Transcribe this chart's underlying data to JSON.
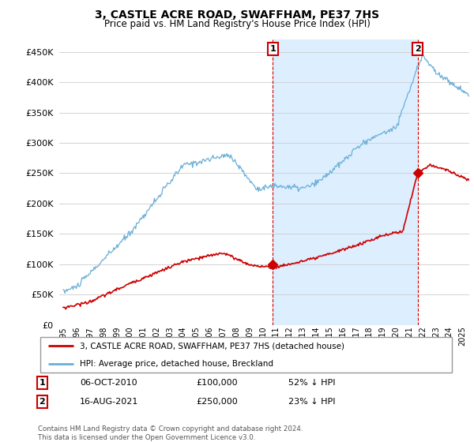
{
  "title": "3, CASTLE ACRE ROAD, SWAFFHAM, PE37 7HS",
  "subtitle": "Price paid vs. HM Land Registry's House Price Index (HPI)",
  "hpi_color": "#6baed6",
  "price_color": "#cc0000",
  "point1_date": "06-OCT-2010",
  "point1_price": 100000,
  "point1_label": "52% ↓ HPI",
  "point2_date": "16-AUG-2021",
  "point2_price": 250000,
  "point2_label": "23% ↓ HPI",
  "ylim": [
    0,
    470000
  ],
  "ylabel_ticks": [
    0,
    50000,
    100000,
    150000,
    200000,
    250000,
    300000,
    350000,
    400000,
    450000
  ],
  "legend_label_red": "3, CASTLE ACRE ROAD, SWAFFHAM, PE37 7HS (detached house)",
  "legend_label_blue": "HPI: Average price, detached house, Breckland",
  "footnote": "Contains HM Land Registry data © Crown copyright and database right 2024.\nThis data is licensed under the Open Government Licence v3.0.",
  "x_start_year": 1995,
  "x_end_year": 2025,
  "shade_color": "#ddeeff",
  "vline_color": "#cc0000"
}
